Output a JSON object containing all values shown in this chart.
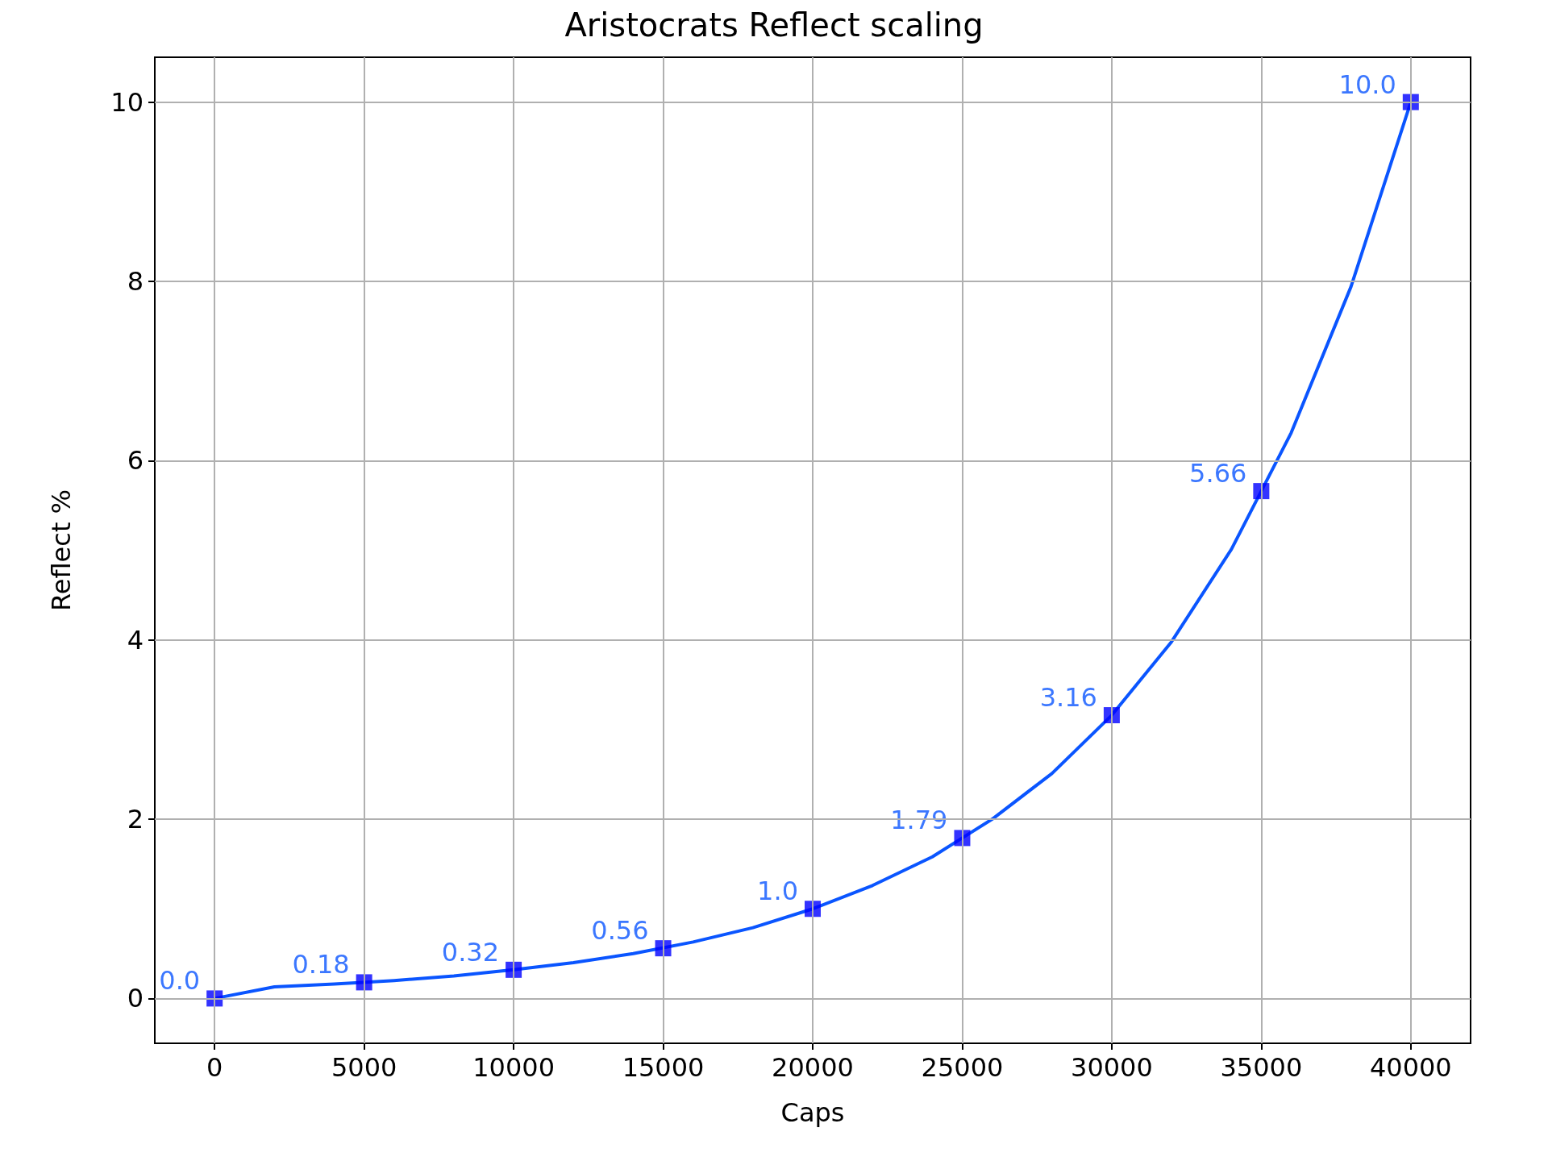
{
  "chart_data": {
    "type": "line",
    "title": "Aristocrats Reflect scaling",
    "xlabel": "Caps",
    "ylabel": "Reflect %",
    "xlim": [
      -2000,
      42000
    ],
    "ylim": [
      -0.5,
      10.5
    ],
    "xticks": [
      0,
      5000,
      10000,
      15000,
      20000,
      25000,
      30000,
      35000,
      40000
    ],
    "yticks": [
      0,
      2,
      4,
      6,
      8,
      10
    ],
    "grid": true,
    "series": [
      {
        "color": "#0a55ff",
        "marker": "none",
        "line_style": "solid",
        "x": [
          0,
          2000,
          4000,
          6000,
          8000,
          10000,
          12000,
          14000,
          16000,
          18000,
          20000,
          22000,
          24000,
          25000,
          26000,
          28000,
          30000,
          32000,
          34000,
          35000,
          36000,
          38000,
          40000
        ],
        "values": [
          0,
          0.13,
          0.16,
          0.2,
          0.25,
          0.32,
          0.4,
          0.5,
          0.63,
          0.79,
          1.0,
          1.26,
          1.58,
          1.79,
          2.0,
          2.51,
          3.16,
          3.98,
          5.01,
          5.66,
          6.31,
          7.94,
          10.0
        ]
      },
      {
        "type": "scatter",
        "color": "#0000ff",
        "marker": "square",
        "x": [
          0,
          5000,
          10000,
          15000,
          20000,
          25000,
          30000,
          35000,
          40000
        ],
        "values": [
          0,
          0.18,
          0.32,
          0.56,
          1.0,
          1.79,
          3.16,
          5.66,
          10.0
        ],
        "value_labels": [
          "0.0",
          "0.18",
          "0.32",
          "0.56",
          "1.0",
          "1.79",
          "3.16",
          "5.66",
          "10.0"
        ]
      }
    ]
  }
}
